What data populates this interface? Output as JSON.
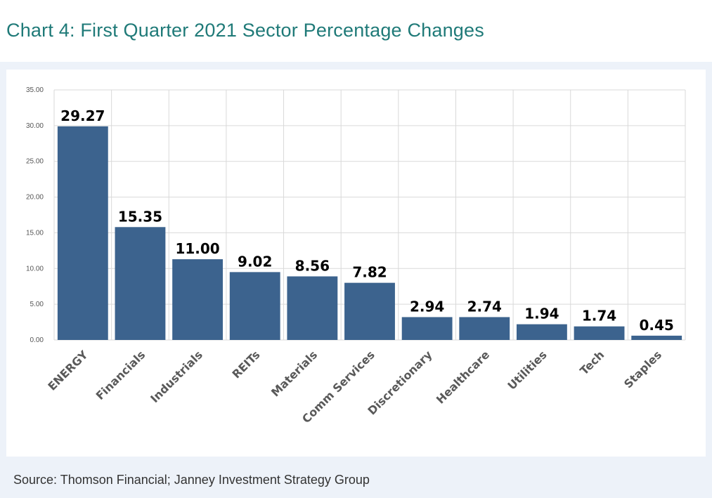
{
  "title": "Chart 4:  First Quarter 2021 Sector Percentage Changes",
  "source": "Source: Thomson Financial; Janney Investment Strategy Group",
  "chart_data": {
    "type": "bar",
    "title": "Chart 4:  First Quarter 2021 Sector Percentage Changes",
    "xlabel": "",
    "ylabel": "",
    "ylim": [
      0,
      35
    ],
    "grid": true,
    "y_ticks": [
      "0.00",
      "5.00",
      "10.00",
      "15.00",
      "20.00",
      "25.00",
      "30.00",
      "35.00"
    ],
    "categories": [
      "ENERGY",
      "Financials",
      "Industrials",
      "REITs",
      "Materials",
      "Comm Services",
      "Discretionary",
      "Healthcare",
      "Utilities",
      "Tech",
      "Staples"
    ],
    "values": [
      29.27,
      15.35,
      11.0,
      9.02,
      8.56,
      7.82,
      2.94,
      2.74,
      1.94,
      1.74,
      0.45
    ],
    "bar_heights": [
      29.9,
      15.8,
      11.3,
      9.5,
      8.9,
      8.0,
      3.2,
      3.2,
      2.2,
      1.9,
      0.6
    ],
    "data_labels": [
      "29.27",
      "15.35",
      "11.00",
      "9.02",
      "8.56",
      "7.82",
      "2.94",
      "2.74",
      "1.94",
      "1.74",
      "0.45"
    ],
    "bar_color": "#3c638e"
  }
}
